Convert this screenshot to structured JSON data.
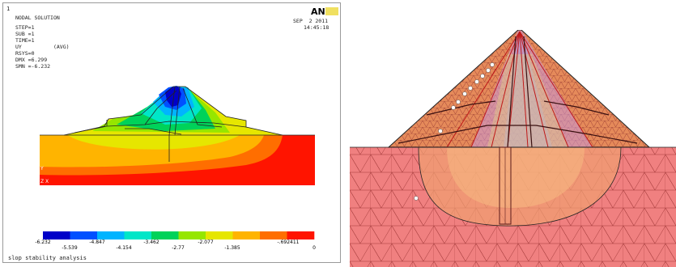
{
  "left_panel": {
    "corner_index": "1",
    "header_lines": [
      "NODAL SOLUTION",
      "STEP=1",
      "SUB =1",
      "TIME=1",
      "UY          (AVG)",
      "RSYS=0",
      "DMX =6.299",
      "SMN =-6.232"
    ],
    "date": "SEP  2 2011",
    "time": "14:45:18",
    "logo_text": "AN",
    "legend_labels_top": [
      "-6.232",
      "-4.847",
      "-3.462",
      "-2.077",
      "-.692411"
    ],
    "legend_labels_bottom": [
      "-5.539",
      "-4.154",
      "-2.77",
      "-1.385",
      "0"
    ],
    "legend_colors": [
      "#0000c8",
      "#0050ff",
      "#00b4ff",
      "#00e6c8",
      "#00d25a",
      "#96e600",
      "#e6e600",
      "#ffb400",
      "#ff6e00",
      "#ff1400"
    ],
    "footer": "slop stability analysis",
    "axis_y": "Y",
    "axis_x": "Z X"
  },
  "right_panel": {
    "mesh_fill": "#f08080",
    "mesh_line": "#9a2a2a"
  }
}
